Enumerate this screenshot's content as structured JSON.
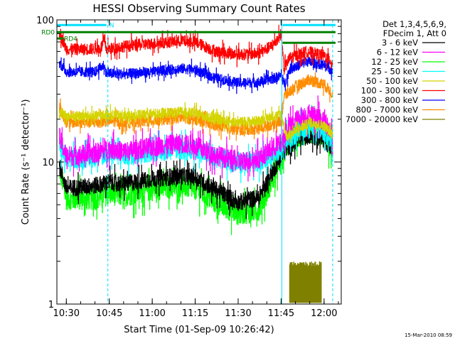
{
  "chart_data": {
    "type": "line",
    "title": "HESSI Observing Summary Count Rates",
    "xlabel": "Start Time (01-Sep-09 10:26:42)",
    "ylabel": "Count Rate (s⁻¹ detector⁻¹)",
    "yscale": "log",
    "ylim": [
      1,
      100
    ],
    "xlim": [
      "10:26:42",
      "12:06:00"
    ],
    "x_ticks": [
      "10:30",
      "10:45",
      "11:00",
      "11:15",
      "11:30",
      "11:45",
      "12:00"
    ],
    "y_ticks": [
      "1",
      "10",
      "100"
    ],
    "grid": false,
    "legend_position": "right",
    "legend_header": [
      "Det 1,3,4,5,6,9,",
      "FDecim 1, Att 0"
    ],
    "date_stamp": "15-Mar-2010 08:59",
    "flag_bars": [
      {
        "label": "RD0",
        "color": "#008000",
        "start": "10:26:42",
        "end": "12:04:00",
        "value": 82
      },
      {
        "label": "RD4",
        "color": "#008000",
        "start": "10:26:42",
        "end": "10:29:00",
        "value": 74
      },
      {
        "label": "",
        "color": "#008000",
        "start": "11:45:30",
        "end": "12:04:00",
        "value": 69
      },
      {
        "label": "N",
        "color": "#00e0ff",
        "start": "10:26:42",
        "end": "10:44:00",
        "value": 92
      },
      {
        "label": "",
        "color": "#00e0ff",
        "start": "11:45:30",
        "end": "12:04:00",
        "value": 92
      }
    ],
    "markers": [
      {
        "time": "10:26:42",
        "style": "solid"
      },
      {
        "time": "10:44:30",
        "style": "dashed"
      },
      {
        "time": "11:45:15",
        "style": "solid"
      },
      {
        "time": "12:03:00",
        "style": "dashed"
      }
    ],
    "series": [
      {
        "name": "3 - 6 keV",
        "color": "#000000",
        "noise": 0.06,
        "from": "10:27:30",
        "to": "12:03:00",
        "points": [
          [
            "10:27:30",
            9.5
          ],
          [
            "10:30",
            6.5
          ],
          [
            "10:40",
            6.8
          ],
          [
            "10:45",
            7.2
          ],
          [
            "10:50",
            7.0
          ],
          [
            "11:00",
            7.6
          ],
          [
            "11:10",
            8.0
          ],
          [
            "11:15",
            7.8
          ],
          [
            "11:22",
            6.4
          ],
          [
            "11:30",
            5.2
          ],
          [
            "11:37",
            5.6
          ],
          [
            "11:42",
            8.5
          ],
          [
            "11:45",
            11.0
          ],
          [
            "11:47",
            12.5
          ],
          [
            "11:50",
            14.0
          ],
          [
            "11:55",
            15.5
          ],
          [
            "12:00",
            14.5
          ],
          [
            "12:03",
            12.0
          ]
        ]
      },
      {
        "name": "6 - 12 keV",
        "color": "#ff00ff",
        "noise": 0.07,
        "from": "10:27:30",
        "to": "12:03:00",
        "points": [
          [
            "10:27:30",
            15.0
          ],
          [
            "10:30",
            11.0
          ],
          [
            "10:40",
            11.5
          ],
          [
            "10:45",
            12.5
          ],
          [
            "10:50",
            11.8
          ],
          [
            "11:00",
            12.8
          ],
          [
            "11:10",
            13.5
          ],
          [
            "11:15",
            13.0
          ],
          [
            "11:22",
            11.2
          ],
          [
            "11:30",
            10.0
          ],
          [
            "11:37",
            10.5
          ],
          [
            "11:42",
            12.5
          ],
          [
            "11:45",
            13.5
          ],
          [
            "11:47",
            17.0
          ],
          [
            "11:52",
            21.0
          ],
          [
            "11:56",
            21.5
          ],
          [
            "12:00",
            19.5
          ],
          [
            "12:03",
            15.5
          ]
        ]
      },
      {
        "name": "12 - 25 keV",
        "color": "#00ff00",
        "noise": 0.08,
        "from": "10:27:30",
        "to": "12:03:00",
        "points": [
          [
            "10:27:30",
            9.0
          ],
          [
            "10:30",
            5.5
          ],
          [
            "10:40",
            5.5
          ],
          [
            "10:45",
            6.0
          ],
          [
            "10:50",
            5.8
          ],
          [
            "11:00",
            6.4
          ],
          [
            "11:10",
            6.8
          ],
          [
            "11:15",
            6.5
          ],
          [
            "11:22",
            5.2
          ],
          [
            "11:30",
            4.3
          ],
          [
            "11:37",
            4.6
          ],
          [
            "11:42",
            7.5
          ],
          [
            "11:45",
            10.0
          ],
          [
            "11:47",
            13.0
          ],
          [
            "11:52",
            15.5
          ],
          [
            "11:56",
            16.5
          ],
          [
            "12:00",
            14.5
          ],
          [
            "12:03",
            12.5
          ]
        ]
      },
      {
        "name": "25 - 50 keV",
        "color": "#00ffff",
        "noise": 0.07,
        "from": "10:27:30",
        "to": "12:03:00",
        "points": [
          [
            "10:27:30",
            13.0
          ],
          [
            "10:30",
            10.5
          ],
          [
            "10:40",
            10.8
          ],
          [
            "10:45",
            11.5
          ],
          [
            "10:50",
            11.0
          ],
          [
            "11:00",
            11.8
          ],
          [
            "11:10",
            12.2
          ],
          [
            "11:15",
            12.0
          ],
          [
            "11:22",
            10.8
          ],
          [
            "11:30",
            9.8
          ],
          [
            "11:37",
            10.0
          ],
          [
            "11:42",
            11.5
          ],
          [
            "11:45",
            12.0
          ],
          [
            "11:47",
            14.0
          ],
          [
            "11:52",
            17.0
          ],
          [
            "11:56",
            18.0
          ],
          [
            "12:00",
            16.5
          ],
          [
            "12:03",
            13.5
          ]
        ]
      },
      {
        "name": "50 - 100 keV",
        "color": "#d4d400",
        "noise": 0.035,
        "from": "10:27:30",
        "to": "12:03:00",
        "points": [
          [
            "10:27:30",
            22.0
          ],
          [
            "10:30",
            21.0
          ],
          [
            "10:40",
            21.0
          ],
          [
            "10:45",
            21.5
          ],
          [
            "10:50",
            21.0
          ],
          [
            "11:00",
            21.8
          ],
          [
            "11:10",
            22.5
          ],
          [
            "11:15",
            22.0
          ],
          [
            "11:22",
            20.0
          ],
          [
            "11:30",
            19.0
          ],
          [
            "11:37",
            19.5
          ],
          [
            "11:42",
            21.0
          ],
          [
            "11:45",
            21.5
          ],
          [
            "11:47",
            15.0
          ],
          [
            "11:50",
            16.5
          ],
          [
            "11:55",
            19.0
          ],
          [
            "12:00",
            18.0
          ],
          [
            "12:03",
            15.5
          ]
        ]
      },
      {
        "name": "100 - 300 keV",
        "color": "#ff0000",
        "noise": 0.04,
        "from": "10:27:30",
        "to": "12:03:00",
        "points": [
          [
            "10:27:30",
            82.0
          ],
          [
            "10:30",
            62.0
          ],
          [
            "10:36",
            62.0
          ],
          [
            "10:42",
            63.0
          ],
          [
            "10:43",
            72.0
          ],
          [
            "10:44",
            62.0
          ],
          [
            "10:50",
            65.0
          ],
          [
            "11:00",
            68.0
          ],
          [
            "11:10",
            71.0
          ],
          [
            "11:15",
            70.0
          ],
          [
            "11:22",
            60.0
          ],
          [
            "11:30",
            57.0
          ],
          [
            "11:37",
            58.0
          ],
          [
            "11:42",
            66.0
          ],
          [
            "11:44",
            75.0
          ],
          [
            "11:45",
            80.0
          ],
          [
            "11:46",
            45.0
          ],
          [
            "11:48",
            54.0
          ],
          [
            "11:54",
            60.0
          ],
          [
            "12:00",
            56.0
          ],
          [
            "12:03",
            50.0
          ]
        ]
      },
      {
        "name": "300 - 800 keV",
        "color": "#0000ff",
        "noise": 0.035,
        "from": "10:27:30",
        "to": "12:03:00",
        "points": [
          [
            "10:27:30",
            50.0
          ],
          [
            "10:30",
            43.0
          ],
          [
            "10:40",
            43.0
          ],
          [
            "10:43",
            48.0
          ],
          [
            "10:44",
            42.0
          ],
          [
            "10:50",
            41.5
          ],
          [
            "11:00",
            43.0
          ],
          [
            "11:10",
            45.5
          ],
          [
            "11:15",
            44.5
          ],
          [
            "11:22",
            39.0
          ],
          [
            "11:30",
            36.0
          ],
          [
            "11:37",
            36.5
          ],
          [
            "11:42",
            38.5
          ],
          [
            "11:45",
            40.5
          ],
          [
            "11:46",
            35.0
          ],
          [
            "11:48",
            45.0
          ],
          [
            "11:54",
            51.0
          ],
          [
            "12:00",
            48.0
          ],
          [
            "12:03",
            43.0
          ]
        ]
      },
      {
        "name": "800 - 7000 keV",
        "color": "#ff8c00",
        "noise": 0.04,
        "from": "10:27:30",
        "to": "12:03:00",
        "points": [
          [
            "10:27:30",
            24.0
          ],
          [
            "10:30",
            19.0
          ],
          [
            "10:40",
            19.0
          ],
          [
            "10:45",
            19.5
          ],
          [
            "10:50",
            19.0
          ],
          [
            "11:00",
            19.5
          ],
          [
            "11:10",
            20.5
          ],
          [
            "11:15",
            20.0
          ],
          [
            "11:22",
            18.0
          ],
          [
            "11:30",
            16.8
          ],
          [
            "11:37",
            17.2
          ],
          [
            "11:42",
            18.5
          ],
          [
            "11:45",
            19.5
          ],
          [
            "11:46",
            29.0
          ],
          [
            "11:50",
            34.0
          ],
          [
            "11:55",
            38.0
          ],
          [
            "12:00",
            35.0
          ],
          [
            "12:03",
            30.0
          ]
        ]
      },
      {
        "name": "7000 - 20000 keV",
        "color": "#808000",
        "noise": 0.0,
        "from": "11:48:00",
        "to": "11:59:00",
        "points": [
          [
            "11:48:00",
            2.0
          ],
          [
            "11:59:00",
            2.0
          ]
        ]
      }
    ]
  }
}
